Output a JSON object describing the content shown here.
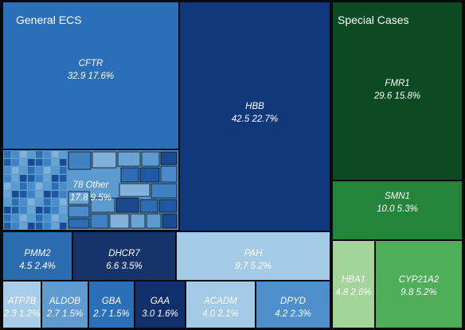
{
  "chart_data": {
    "type": "treemap",
    "groups": [
      {
        "name": "General ECS",
        "items": [
          {
            "name": "CFTR",
            "value": 32.9,
            "pct": "17.6%",
            "value_text": "32.9 17.6%",
            "color": "#2a6fb8"
          },
          {
            "name": "HBB",
            "value": 42.5,
            "pct": "22.7%",
            "value_text": "42.5 22.7%",
            "color": "#11387a"
          },
          {
            "name": "78 Other",
            "value": 17.8,
            "pct": "9.5%",
            "value_text": "17.8 9.5%",
            "color": "#5c9bd0"
          },
          {
            "name": "PMM2",
            "value": 4.5,
            "pct": "2.4%",
            "value_text": "4.5 2.4%",
            "color": "#2b6cb0"
          },
          {
            "name": "DHCR7",
            "value": 6.6,
            "pct": "3.5%",
            "value_text": "6.6 3.5%",
            "color": "#16336a"
          },
          {
            "name": "PAH",
            "value": 9.7,
            "pct": "5.2%",
            "value_text": "9.7 5.2%",
            "color": "#a4cbe6"
          },
          {
            "name": "ATP7B",
            "value": 2.3,
            "pct": "1.2%",
            "value_text": "2.3 1.2%",
            "color": "#a8cde8"
          },
          {
            "name": "ALDOB",
            "value": 2.7,
            "pct": "1.5%",
            "value_text": "2.7 1.5%",
            "color": "#5f9ad0"
          },
          {
            "name": "GBA",
            "value": 2.7,
            "pct": "1.5%",
            "value_text": "2.7 1.5%",
            "color": "#2a6fb8"
          },
          {
            "name": "GAA",
            "value": 3.0,
            "pct": "1.6%",
            "value_text": "3.0 1.6%",
            "color": "#11306b"
          },
          {
            "name": "ACADM",
            "value": 4.0,
            "pct": "2.1%",
            "value_text": "4.0 2.1%",
            "color": "#a4cbe6"
          },
          {
            "name": "DPYD",
            "value": 4.2,
            "pct": "2.3%",
            "value_text": "4.2 2.3%",
            "color": "#4e8fcb"
          }
        ]
      },
      {
        "name": "Special Cases",
        "items": [
          {
            "name": "FMR1",
            "value": 29.6,
            "pct": "15.8%",
            "value_text": "29.6 15.8%",
            "color": "#0b4a22"
          },
          {
            "name": "SMN1",
            "value": 10.0,
            "pct": "5.3%",
            "value_text": "10.0 5.3%",
            "color": "#25843c"
          },
          {
            "name": "HBA1",
            "value": 4.8,
            "pct": "2.6%",
            "value_text": "4.8 2.6%",
            "color": "#a3d49a"
          },
          {
            "name": "CYP21A2",
            "value": 9.8,
            "pct": "5.2%",
            "value_text": "9.8 5.2%",
            "color": "#4fae5a"
          }
        ]
      }
    ],
    "colors": {
      "border": "#0a0a0a",
      "other_palette": [
        "#2c6db3",
        "#3e82c4",
        "#5c9bd0",
        "#1e5aa3",
        "#7fb1da",
        "#1a4a8f",
        "#4a8ccb",
        "#6aa4d4"
      ]
    }
  }
}
